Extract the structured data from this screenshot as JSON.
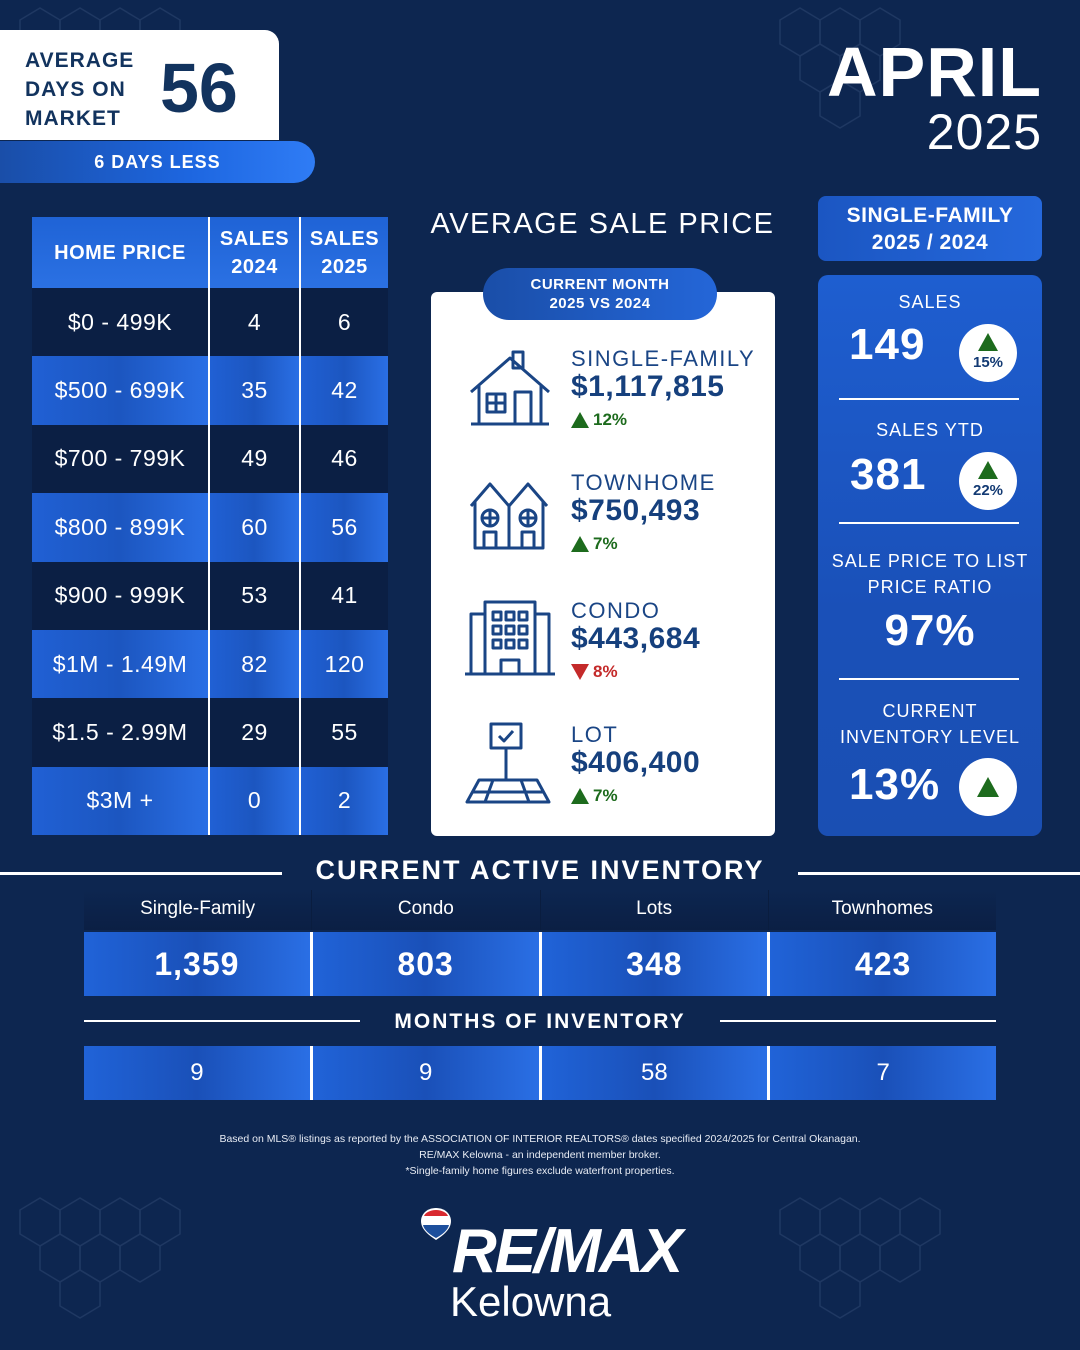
{
  "days_on_market": {
    "label": "AVERAGE DAYS ON MARKET",
    "value": "56",
    "change": "6 DAYS LESS"
  },
  "period": {
    "month": "APRIL",
    "year": "2025"
  },
  "price_table": {
    "headers": [
      "HOME PRICE",
      "SALES 2024",
      "SALES 2025"
    ],
    "rows": [
      [
        "$0 - 499K",
        "4",
        "6"
      ],
      [
        "$500 - 699K",
        "35",
        "42"
      ],
      [
        "$700 - 799K",
        "49",
        "46"
      ],
      [
        "$800 - 899K",
        "60",
        "56"
      ],
      [
        "$900 - 999K",
        "53",
        "41"
      ],
      [
        "$1M - 1.49M",
        "82",
        "120"
      ],
      [
        "$1.5 - 2.99M",
        "29",
        "55"
      ],
      [
        "$3M +",
        "0",
        "2"
      ]
    ]
  },
  "average_sale_price": {
    "title": "AVERAGE SALE PRICE",
    "pill": [
      "CURRENT MONTH",
      "2025 VS 2024"
    ],
    "items": [
      {
        "name": "SINGLE-FAMILY",
        "price": "$1,117,815",
        "change": "12%",
        "direction": "up",
        "icon": "house-icon"
      },
      {
        "name": "TOWNHOME",
        "price": "$750,493",
        "change": "7%",
        "direction": "up",
        "icon": "townhome-icon"
      },
      {
        "name": "CONDO",
        "price": "$443,684",
        "change": "8%",
        "direction": "down",
        "icon": "condo-building-icon"
      },
      {
        "name": "LOT",
        "price": "$406,400",
        "change": "7%",
        "direction": "up",
        "icon": "lot-sign-icon"
      }
    ]
  },
  "single_family": {
    "header": [
      "SINGLE-FAMILY",
      "2025 / 2024"
    ],
    "sales_label": "SALES",
    "sales_value": "149",
    "sales_change": "15%",
    "ytd_label": "SALES YTD",
    "ytd_value": "381",
    "ytd_change": "22%",
    "ratio_label": [
      "SALE PRICE TO LIST",
      "PRICE RATIO"
    ],
    "ratio_value": "97%",
    "inventory_label": [
      "CURRENT",
      "INVENTORY LEVEL"
    ],
    "inventory_value": "13%"
  },
  "active_inventory": {
    "title": "CURRENT ACTIVE INVENTORY",
    "categories": [
      "Single-Family",
      "Condo",
      "Lots",
      "Townhomes"
    ],
    "values": [
      "1,359",
      "803",
      "348",
      "423"
    ]
  },
  "months_inventory": {
    "title": "MONTHS OF INVENTORY",
    "values": [
      "9",
      "9",
      "58",
      "7"
    ]
  },
  "footer": [
    "Based on MLS® listings as reported by the ASSOCIATION OF INTERIOR REALTORS® dates specified 2024/2025 for Central Okanagan.",
    "RE/MAX Kelowna - an independent member broker.",
    "*Single-family home figures exclude waterfront properties."
  ],
  "brand": {
    "name": "RE/MAX",
    "city": "Kelowna"
  },
  "colors": {
    "background": "#0d2650",
    "accent": "#1f63d6",
    "up": "#1d6b1d",
    "down": "#c42a2a"
  }
}
